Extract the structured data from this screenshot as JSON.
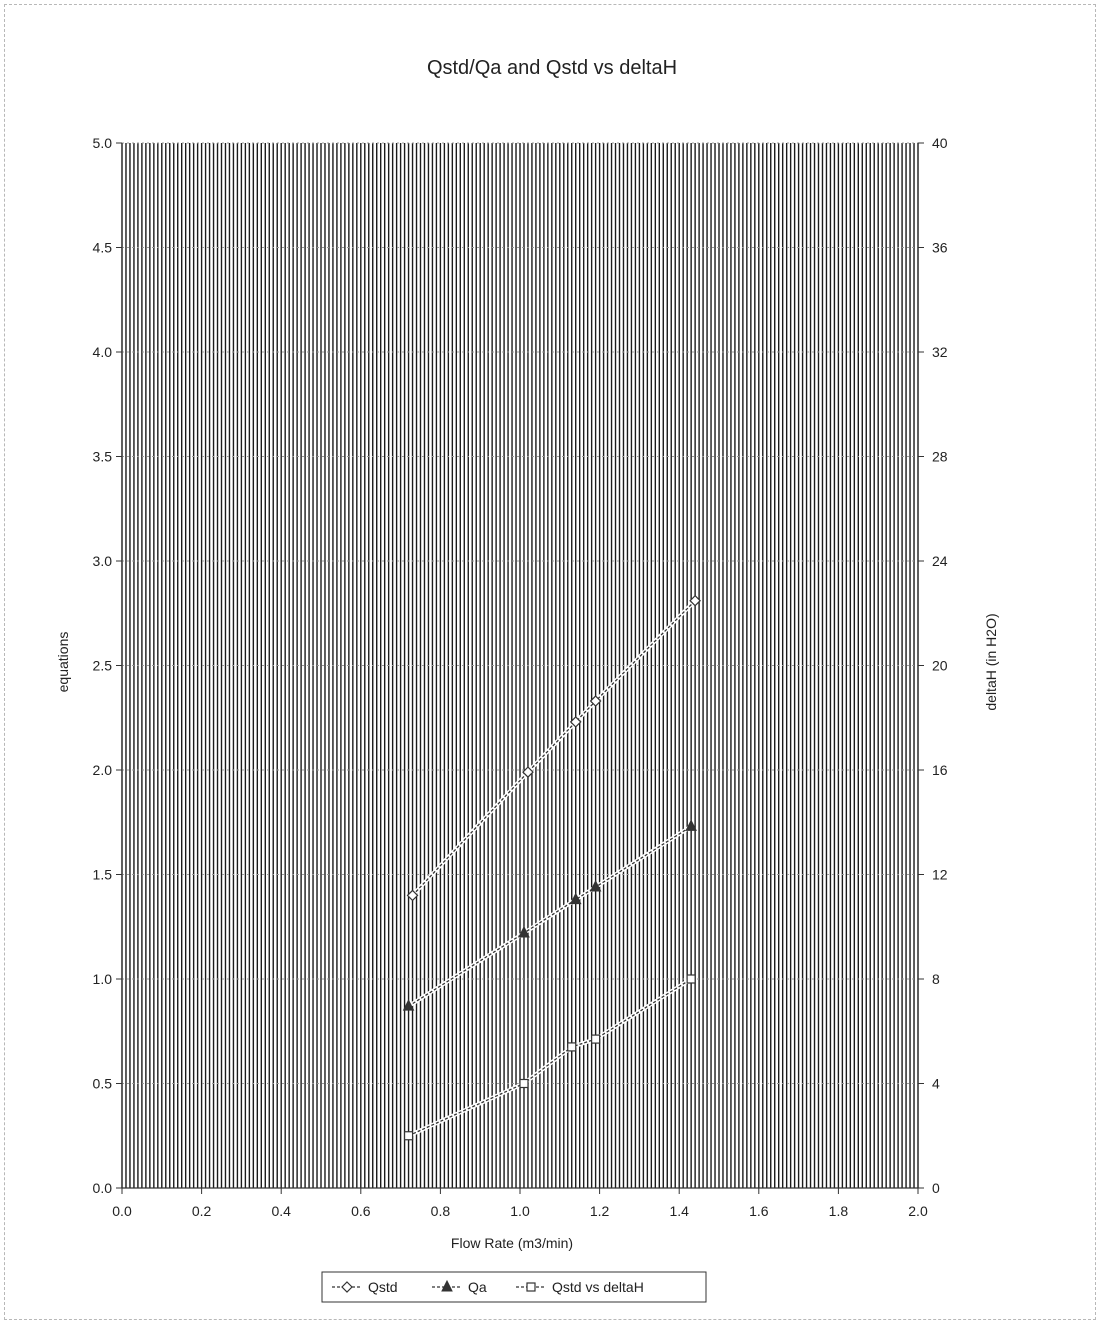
{
  "chart_data": {
    "type": "line",
    "title": "Qstd/Qa and Qstd vs deltaH",
    "xlabel": "Flow Rate (m3/min)",
    "ylabel": "equations",
    "y2label": "deltaH (in H2O)",
    "xlim": [
      0.0,
      2.0
    ],
    "ylim": [
      0.0,
      5.0
    ],
    "y2lim": [
      0,
      40
    ],
    "x_ticks": [
      "0.0",
      "0.2",
      "0.4",
      "0.6",
      "0.8",
      "1.0",
      "1.2",
      "1.4",
      "1.6",
      "1.8",
      "2.0"
    ],
    "y_ticks": [
      "0.0",
      "0.5",
      "1.0",
      "1.5",
      "2.0",
      "2.5",
      "3.0",
      "3.5",
      "4.0",
      "4.5",
      "5.0"
    ],
    "y2_ticks": [
      "0",
      "4",
      "8",
      "12",
      "16",
      "20",
      "24",
      "28",
      "32",
      "36",
      "40"
    ],
    "grid": true,
    "legend_position": "bottom",
    "series": [
      {
        "name": "Qstd",
        "axis": "left",
        "marker": "diamond",
        "color": "#333333",
        "points": [
          [
            0.73,
            1.4
          ],
          [
            1.02,
            1.99
          ],
          [
            1.14,
            2.23
          ],
          [
            1.19,
            2.33
          ],
          [
            1.44,
            2.81
          ]
        ]
      },
      {
        "name": "Qa",
        "axis": "left",
        "marker": "triangle",
        "color": "#333333",
        "points": [
          [
            0.72,
            0.87
          ],
          [
            1.01,
            1.22
          ],
          [
            1.14,
            1.38
          ],
          [
            1.19,
            1.44
          ],
          [
            1.43,
            1.73
          ]
        ]
      },
      {
        "name": "Qstd vs deltaH",
        "axis": "right",
        "marker": "square",
        "color": "#333333",
        "points": [
          [
            0.72,
            2.0
          ],
          [
            1.01,
            4.0
          ],
          [
            1.13,
            5.4
          ],
          [
            1.19,
            5.7
          ],
          [
            1.43,
            8.0
          ]
        ]
      }
    ]
  }
}
